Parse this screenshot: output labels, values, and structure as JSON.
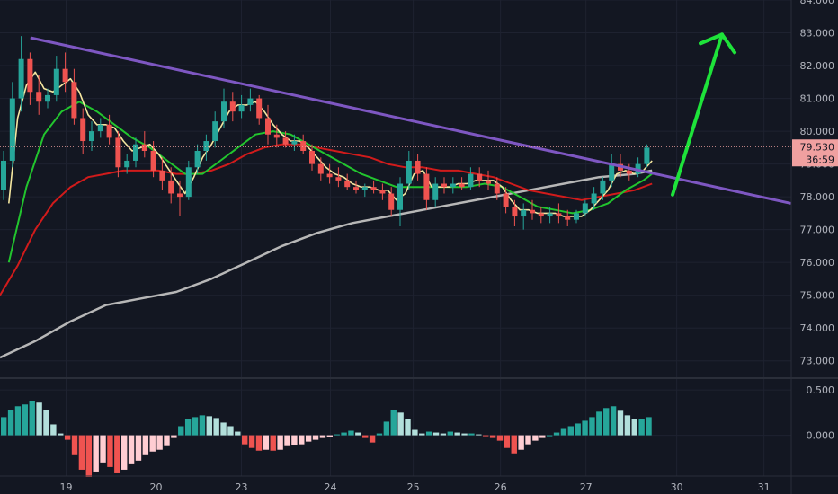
{
  "chart_data": {
    "type": "candlestick",
    "colors": {
      "background": "#131722",
      "grid": "#1e2230",
      "axis_text": "#b2b5be",
      "up": "#26a69a",
      "down": "#ef5350",
      "ma_fast": "#f5e7a0",
      "ma_mid": "#22c52e",
      "ma_slow": "#d11b1b",
      "ma_long": "#b7b7b7",
      "trendline": "#7e57c2",
      "arrow": "#1ee33a",
      "price_tag_bg": "#f0a0a0",
      "price_tag_text": "#131722",
      "osc_up_strong": "#26a69a",
      "osc_up_weak": "#b2dfdb",
      "osc_down_strong": "#ef5350",
      "osc_down_weak": "#ffcdd2"
    },
    "price_axis": {
      "range": [
        72.5,
        84.0
      ],
      "ticks": [
        "73.000",
        "74.000",
        "75.000",
        "76.000",
        "77.000",
        "78.000",
        "79.000",
        "80.000",
        "81.000",
        "82.000",
        "83.000",
        "84.000"
      ]
    },
    "time_axis": {
      "labels": [
        "19",
        "20",
        "23",
        "24",
        "25",
        "26",
        "27",
        "30",
        "31"
      ]
    },
    "current_price": {
      "price": 79.53,
      "label": "79.530",
      "countdown": "36:59"
    },
    "trendline": {
      "start": [
        1,
        82.85
      ],
      "end": [
        112,
        77.8
      ]
    },
    "annotation_arrow": {
      "from": [
        96,
        77.9
      ],
      "to": [
        100,
        82.95
      ]
    },
    "indicator": {
      "ticks": [
        "0.500",
        "0.000"
      ],
      "range": [
        -0.45,
        0.62
      ],
      "values": [
        0.2,
        0.28,
        0.32,
        0.34,
        0.38,
        0.36,
        0.28,
        0.12,
        0.02,
        -0.05,
        -0.22,
        -0.38,
        -0.46,
        -0.4,
        -0.3,
        -0.35,
        -0.42,
        -0.38,
        -0.32,
        -0.28,
        -0.22,
        -0.18,
        -0.16,
        -0.12,
        -0.03,
        0.1,
        0.18,
        0.2,
        0.22,
        0.21,
        0.19,
        0.14,
        0.1,
        0.04,
        -0.1,
        -0.14,
        -0.17,
        -0.16,
        -0.17,
        -0.16,
        -0.12,
        -0.11,
        -0.1,
        -0.07,
        -0.05,
        -0.03,
        -0.02,
        0.01,
        0.03,
        0.05,
        0.03,
        -0.03,
        -0.08,
        0.02,
        0.15,
        0.28,
        0.25,
        0.18,
        0.06,
        0.02,
        0.04,
        0.03,
        0.02,
        0.04,
        0.03,
        0.02,
        0.02,
        0.01,
        -0.01,
        -0.03,
        -0.06,
        -0.14,
        -0.2,
        -0.16,
        -0.1,
        -0.06,
        -0.03,
        0.0,
        0.03,
        0.07,
        0.1,
        0.13,
        0.16,
        0.2,
        0.26,
        0.3,
        0.32,
        0.27,
        0.22,
        0.18,
        0.18,
        0.2
      ]
    },
    "candles": [
      [
        78.2,
        79.4,
        77.9,
        79.1
      ],
      [
        79.1,
        81.5,
        78.9,
        81.0
      ],
      [
        81.0,
        82.9,
        80.6,
        82.2
      ],
      [
        82.2,
        82.4,
        80.8,
        81.2
      ],
      [
        81.2,
        81.7,
        80.5,
        80.9
      ],
      [
        80.9,
        81.3,
        80.7,
        81.1
      ],
      [
        81.1,
        82.3,
        80.9,
        81.9
      ],
      [
        81.9,
        82.4,
        81.2,
        81.5
      ],
      [
        81.5,
        81.9,
        80.2,
        80.4
      ],
      [
        80.4,
        80.7,
        79.3,
        79.7
      ],
      [
        79.7,
        80.3,
        79.4,
        80.0
      ],
      [
        80.0,
        80.4,
        79.8,
        80.2
      ],
      [
        80.2,
        80.5,
        79.6,
        79.8
      ],
      [
        79.8,
        80.0,
        78.6,
        78.9
      ],
      [
        78.9,
        79.3,
        78.7,
        79.1
      ],
      [
        79.1,
        79.8,
        78.9,
        79.6
      ],
      [
        79.6,
        80.0,
        79.2,
        79.4
      ],
      [
        79.4,
        79.7,
        78.6,
        78.8
      ],
      [
        78.8,
        79.2,
        78.2,
        78.5
      ],
      [
        78.5,
        78.9,
        77.8,
        78.1
      ],
      [
        78.1,
        78.5,
        77.4,
        78.0
      ],
      [
        78.0,
        79.1,
        77.9,
        78.9
      ],
      [
        78.9,
        79.6,
        78.7,
        79.4
      ],
      [
        79.4,
        79.9,
        79.1,
        79.7
      ],
      [
        79.7,
        80.6,
        79.5,
        80.3
      ],
      [
        80.3,
        81.3,
        80.1,
        80.9
      ],
      [
        80.9,
        81.2,
        80.3,
        80.6
      ],
      [
        80.6,
        81.1,
        80.4,
        80.8
      ],
      [
        80.8,
        81.3,
        80.6,
        81.0
      ],
      [
        81.0,
        81.1,
        80.2,
        80.4
      ],
      [
        80.4,
        80.8,
        79.6,
        79.9
      ],
      [
        79.9,
        80.2,
        79.5,
        79.8
      ],
      [
        79.8,
        80.0,
        79.5,
        79.6
      ],
      [
        79.6,
        79.9,
        79.4,
        79.7
      ],
      [
        79.7,
        79.9,
        79.3,
        79.4
      ],
      [
        79.4,
        79.6,
        78.8,
        79.0
      ],
      [
        79.0,
        79.2,
        78.5,
        78.7
      ],
      [
        78.7,
        79.0,
        78.4,
        78.6
      ],
      [
        78.6,
        78.9,
        78.3,
        78.5
      ],
      [
        78.5,
        78.7,
        78.2,
        78.3
      ],
      [
        78.3,
        78.5,
        78.1,
        78.2
      ],
      [
        78.2,
        78.4,
        78.0,
        78.3
      ],
      [
        78.3,
        78.5,
        78.1,
        78.2
      ],
      [
        78.2,
        78.4,
        77.9,
        78.1
      ],
      [
        78.1,
        78.3,
        77.4,
        77.6
      ],
      [
        77.6,
        78.6,
        77.1,
        78.4
      ],
      [
        78.4,
        79.4,
        78.2,
        79.1
      ],
      [
        79.1,
        79.3,
        78.5,
        78.7
      ],
      [
        78.7,
        78.9,
        77.6,
        77.9
      ],
      [
        77.9,
        78.6,
        77.7,
        78.4
      ],
      [
        78.4,
        78.6,
        78.1,
        78.3
      ],
      [
        78.3,
        78.6,
        78.1,
        78.4
      ],
      [
        78.4,
        78.6,
        78.2,
        78.3
      ],
      [
        78.3,
        78.9,
        78.2,
        78.7
      ],
      [
        78.7,
        78.9,
        78.3,
        78.5
      ],
      [
        78.5,
        78.8,
        78.2,
        78.4
      ],
      [
        78.4,
        78.6,
        77.9,
        78.1
      ],
      [
        78.1,
        78.3,
        77.5,
        77.7
      ],
      [
        77.7,
        77.9,
        77.1,
        77.4
      ],
      [
        77.4,
        77.8,
        77.0,
        77.6
      ],
      [
        77.6,
        77.9,
        77.3,
        77.5
      ],
      [
        77.5,
        77.7,
        77.2,
        77.4
      ],
      [
        77.4,
        77.7,
        77.2,
        77.5
      ],
      [
        77.5,
        77.8,
        77.2,
        77.4
      ],
      [
        77.4,
        77.6,
        77.1,
        77.3
      ],
      [
        77.3,
        77.6,
        77.2,
        77.5
      ],
      [
        77.5,
        77.9,
        77.4,
        77.8
      ],
      [
        77.8,
        78.3,
        77.6,
        78.1
      ],
      [
        78.1,
        78.6,
        77.9,
        78.5
      ],
      [
        78.5,
        79.3,
        78.3,
        79.0
      ],
      [
        79.0,
        79.3,
        78.6,
        78.8
      ],
      [
        78.8,
        79.0,
        78.5,
        78.7
      ],
      [
        78.7,
        79.2,
        78.6,
        79.0
      ],
      [
        79.0,
        79.6,
        78.9,
        79.5
      ]
    ],
    "ma_fast": [
      [
        1,
        77.8
      ],
      [
        2,
        80.4
      ],
      [
        3,
        81.4
      ],
      [
        4,
        81.8
      ],
      [
        5,
        81.3
      ],
      [
        6,
        81.2
      ],
      [
        7,
        81.4
      ],
      [
        8,
        81.6
      ],
      [
        9,
        81.2
      ],
      [
        10,
        80.5
      ],
      [
        11,
        80.2
      ],
      [
        12,
        80.2
      ],
      [
        13,
        80.1
      ],
      [
        14,
        79.7
      ],
      [
        15,
        79.4
      ],
      [
        16,
        79.5
      ],
      [
        17,
        79.6
      ],
      [
        18,
        79.3
      ],
      [
        19,
        78.9
      ],
      [
        20,
        78.5
      ],
      [
        21,
        78.1
      ],
      [
        22,
        78.6
      ],
      [
        23,
        79.2
      ],
      [
        24,
        79.6
      ],
      [
        25,
        80.1
      ],
      [
        26,
        80.6
      ],
      [
        27,
        80.8
      ],
      [
        28,
        80.8
      ],
      [
        29,
        80.9
      ],
      [
        30,
        80.6
      ],
      [
        31,
        80.2
      ],
      [
        32,
        79.9
      ],
      [
        33,
        79.7
      ],
      [
        34,
        79.7
      ],
      [
        35,
        79.5
      ],
      [
        36,
        79.2
      ],
      [
        37,
        78.9
      ],
      [
        38,
        78.7
      ],
      [
        39,
        78.6
      ],
      [
        40,
        78.4
      ],
      [
        41,
        78.3
      ],
      [
        42,
        78.3
      ],
      [
        43,
        78.2
      ],
      [
        44,
        78.2
      ],
      [
        45,
        77.9
      ],
      [
        46,
        78.1
      ],
      [
        47,
        78.7
      ],
      [
        48,
        78.8
      ],
      [
        49,
        78.3
      ],
      [
        50,
        78.3
      ],
      [
        51,
        78.3
      ],
      [
        52,
        78.4
      ],
      [
        53,
        78.4
      ],
      [
        54,
        78.5
      ],
      [
        55,
        78.5
      ],
      [
        56,
        78.5
      ],
      [
        57,
        78.3
      ],
      [
        58,
        77.9
      ],
      [
        59,
        77.6
      ],
      [
        60,
        77.6
      ],
      [
        61,
        77.5
      ],
      [
        62,
        77.5
      ],
      [
        63,
        77.5
      ],
      [
        64,
        77.4
      ],
      [
        65,
        77.4
      ],
      [
        66,
        77.4
      ],
      [
        67,
        77.6
      ],
      [
        68,
        77.9
      ],
      [
        69,
        78.2
      ],
      [
        70,
        78.7
      ],
      [
        71,
        78.8
      ],
      [
        72,
        78.7
      ],
      [
        73,
        78.8
      ],
      [
        74,
        79.1
      ]
    ],
    "ma_mid": [
      [
        1,
        76.0
      ],
      [
        3,
        78.3
      ],
      [
        5,
        79.9
      ],
      [
        7,
        80.6
      ],
      [
        9,
        80.9
      ],
      [
        11,
        80.6
      ],
      [
        13,
        80.2
      ],
      [
        15,
        79.8
      ],
      [
        17,
        79.5
      ],
      [
        19,
        79.1
      ],
      [
        21,
        78.7
      ],
      [
        23,
        78.7
      ],
      [
        25,
        79.1
      ],
      [
        27,
        79.5
      ],
      [
        29,
        79.9
      ],
      [
        31,
        80.0
      ],
      [
        33,
        79.9
      ],
      [
        35,
        79.6
      ],
      [
        37,
        79.3
      ],
      [
        39,
        79.0
      ],
      [
        41,
        78.7
      ],
      [
        43,
        78.5
      ],
      [
        45,
        78.3
      ],
      [
        47,
        78.3
      ],
      [
        49,
        78.3
      ],
      [
        51,
        78.3
      ],
      [
        53,
        78.3
      ],
      [
        55,
        78.4
      ],
      [
        57,
        78.3
      ],
      [
        59,
        78.0
      ],
      [
        61,
        77.7
      ],
      [
        63,
        77.6
      ],
      [
        65,
        77.5
      ],
      [
        67,
        77.6
      ],
      [
        69,
        77.8
      ],
      [
        71,
        78.2
      ],
      [
        73,
        78.5
      ],
      [
        74,
        78.7
      ]
    ],
    "ma_slow": [
      [
        0,
        75.0
      ],
      [
        2,
        75.9
      ],
      [
        4,
        77.0
      ],
      [
        6,
        77.8
      ],
      [
        8,
        78.3
      ],
      [
        10,
        78.6
      ],
      [
        12,
        78.7
      ],
      [
        14,
        78.8
      ],
      [
        16,
        78.8
      ],
      [
        18,
        78.8
      ],
      [
        20,
        78.7
      ],
      [
        22,
        78.7
      ],
      [
        24,
        78.8
      ],
      [
        26,
        79.0
      ],
      [
        28,
        79.3
      ],
      [
        30,
        79.5
      ],
      [
        32,
        79.6
      ],
      [
        34,
        79.6
      ],
      [
        36,
        79.5
      ],
      [
        38,
        79.4
      ],
      [
        40,
        79.3
      ],
      [
        42,
        79.2
      ],
      [
        44,
        79.0
      ],
      [
        46,
        78.9
      ],
      [
        48,
        78.9
      ],
      [
        50,
        78.8
      ],
      [
        52,
        78.8
      ],
      [
        54,
        78.7
      ],
      [
        56,
        78.6
      ],
      [
        58,
        78.4
      ],
      [
        60,
        78.2
      ],
      [
        62,
        78.1
      ],
      [
        64,
        78.0
      ],
      [
        66,
        77.9
      ],
      [
        68,
        78.0
      ],
      [
        70,
        78.1
      ],
      [
        72,
        78.2
      ],
      [
        74,
        78.4
      ]
    ],
    "ma_long": [
      [
        0,
        73.1
      ],
      [
        4,
        73.6
      ],
      [
        8,
        74.2
      ],
      [
        12,
        74.7
      ],
      [
        16,
        74.9
      ],
      [
        20,
        75.1
      ],
      [
        24,
        75.5
      ],
      [
        28,
        76.0
      ],
      [
        32,
        76.5
      ],
      [
        36,
        76.9
      ],
      [
        40,
        77.2
      ],
      [
        44,
        77.4
      ],
      [
        48,
        77.6
      ],
      [
        52,
        77.8
      ],
      [
        56,
        78.0
      ],
      [
        60,
        78.2
      ],
      [
        64,
        78.4
      ],
      [
        68,
        78.6
      ],
      [
        72,
        78.7
      ],
      [
        74,
        78.8
      ]
    ]
  }
}
